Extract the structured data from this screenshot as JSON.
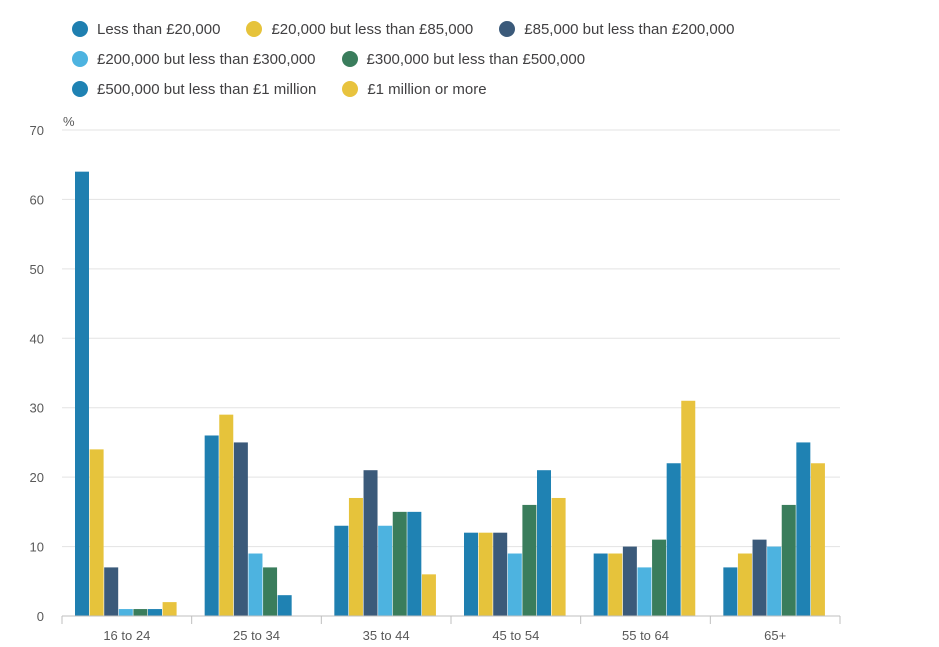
{
  "chart_data": {
    "type": "bar",
    "title": "",
    "xlabel": "",
    "ylabel": "%",
    "ylim": [
      0,
      70
    ],
    "yticks": [
      0,
      10,
      20,
      30,
      40,
      50,
      60,
      70
    ],
    "grid": true,
    "legend_position": "top",
    "categories": [
      "16 to 24",
      "25 to 34",
      "35 to 44",
      "45 to 54",
      "55 to 64",
      "65+"
    ],
    "series": [
      {
        "name": "Less than £20,000",
        "color": "#1f7fb0",
        "values": [
          64,
          26,
          13,
          12,
          9,
          7
        ]
      },
      {
        "name": "£20,000 but less than £85,000",
        "color": "#e6c33b",
        "values": [
          24,
          29,
          17,
          12,
          9,
          9
        ]
      },
      {
        "name": "£85,000 but less than £200,000",
        "color": "#3b5a7a",
        "values": [
          7,
          25,
          21,
          12,
          10,
          11
        ]
      },
      {
        "name": "£200,000 but less than £300,000",
        "color": "#4db3e0",
        "values": [
          1,
          9,
          13,
          9,
          7,
          10
        ]
      },
      {
        "name": "£300,000 but less than £500,000",
        "color": "#3a7d5c",
        "values": [
          1,
          7,
          15,
          16,
          11,
          16
        ]
      },
      {
        "name": "£500,000 but less than £1 million",
        "color": "#1f82b3",
        "values": [
          1,
          3,
          15,
          21,
          22,
          25
        ]
      },
      {
        "name": "£1 million or more",
        "color": "#e8c33e",
        "values": [
          2,
          0,
          6,
          17,
          31,
          22
        ]
      }
    ]
  }
}
